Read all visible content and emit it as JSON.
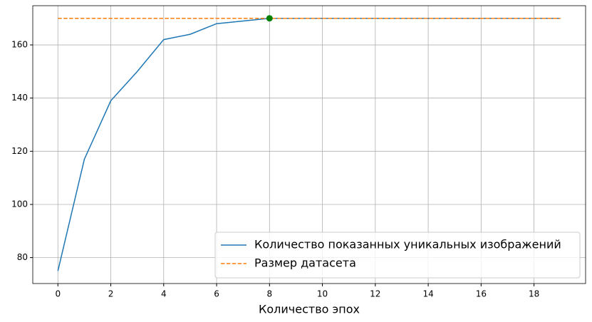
{
  "chart_data": {
    "type": "line",
    "xlabel": "Количество эпох",
    "x": [
      0,
      1,
      2,
      3,
      4,
      5,
      6,
      7,
      8,
      9,
      10,
      11,
      12,
      13,
      14,
      15,
      16,
      17,
      18,
      19
    ],
    "series": [
      {
        "name": "Количество показанных уникальных изображений",
        "color": "#1f77b4",
        "dash": false,
        "values": [
          75,
          117,
          139,
          150,
          162,
          164,
          168,
          169,
          170,
          170,
          170,
          170,
          170,
          170,
          170,
          170,
          170,
          170,
          170,
          170
        ]
      },
      {
        "name": "Размер датасета",
        "color": "#ff7f0e",
        "dash": true,
        "values": [
          170,
          170,
          170,
          170,
          170,
          170,
          170,
          170,
          170,
          170,
          170,
          170,
          170,
          170,
          170,
          170,
          170,
          170,
          170,
          170
        ]
      }
    ],
    "markers": [
      {
        "x": 8,
        "y": 170,
        "color": "green"
      }
    ],
    "xlim": [
      -0.95,
      19.95
    ],
    "ylim": [
      70.25,
      174.75
    ],
    "xticks": [
      0,
      2,
      4,
      6,
      8,
      10,
      12,
      14,
      16,
      18
    ],
    "yticks": [
      80,
      100,
      120,
      140,
      160
    ],
    "grid": true,
    "legend": "lower right"
  }
}
